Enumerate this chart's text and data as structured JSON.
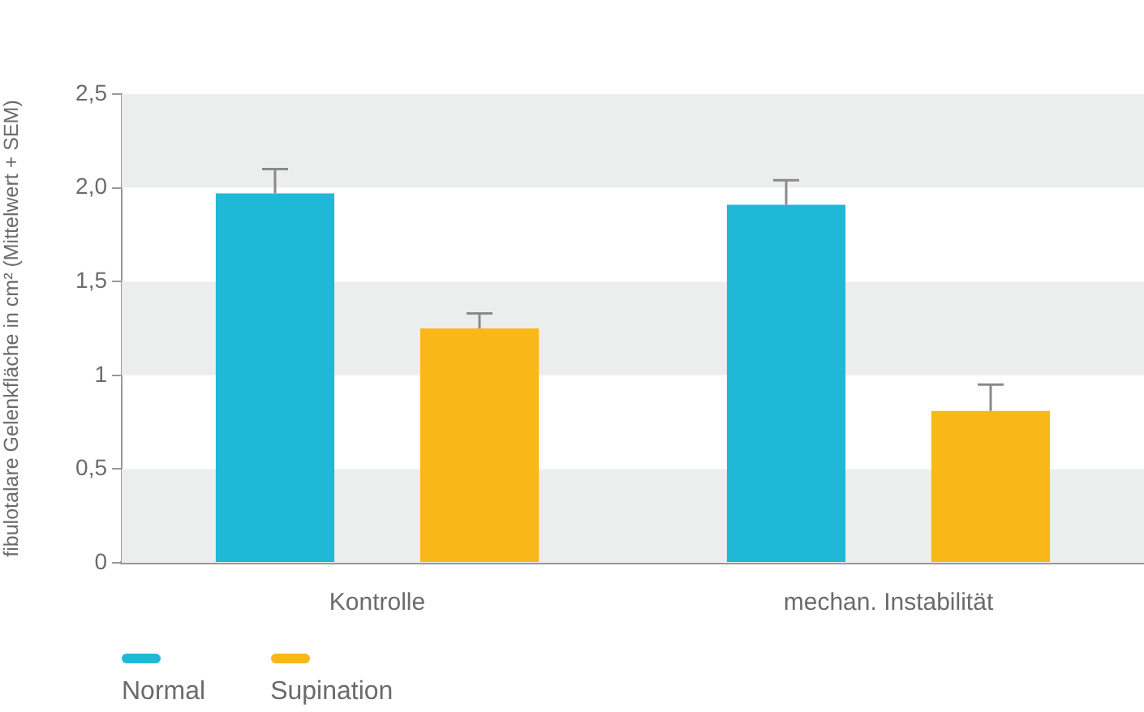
{
  "chart_data": {
    "type": "bar",
    "ylabel": "fibulotalare Gelenkfläche in cm² (Mittelwert + SEM)",
    "categories": [
      "Kontrolle",
      "mechan. Instabilität"
    ],
    "series": [
      {
        "name": "Normal",
        "color": "#1fb8d6",
        "values": [
          1.97,
          1.91
        ],
        "errors": [
          [
            1.97,
            2.1
          ],
          [
            1.91,
            2.04
          ]
        ]
      },
      {
        "name": "Supination",
        "color": "#f9b718",
        "values": [
          1.25,
          0.81
        ],
        "errors": [
          [
            1.25,
            1.33
          ],
          [
            0.81,
            0.95
          ]
        ]
      }
    ],
    "ylim": [
      0,
      2.5
    ],
    "yticks": [
      0,
      {
        "value": 0.5,
        "label": "0,5"
      },
      1,
      {
        "value": 1.5,
        "label": "1,5"
      },
      {
        "value": 2,
        "label": "2,0"
      },
      {
        "value": 2.5,
        "label": "2,5"
      }
    ],
    "bands": [
      {
        "axis": "y",
        "from": 0,
        "to": 0.5,
        "color": "#eceeed"
      },
      {
        "axis": "y",
        "from": 1,
        "to": 1.5,
        "color": "#eceeed"
      },
      {
        "axis": "y",
        "from": 2,
        "to": 2.5,
        "color": "#eceeed"
      }
    ],
    "legend": "bottom left"
  }
}
